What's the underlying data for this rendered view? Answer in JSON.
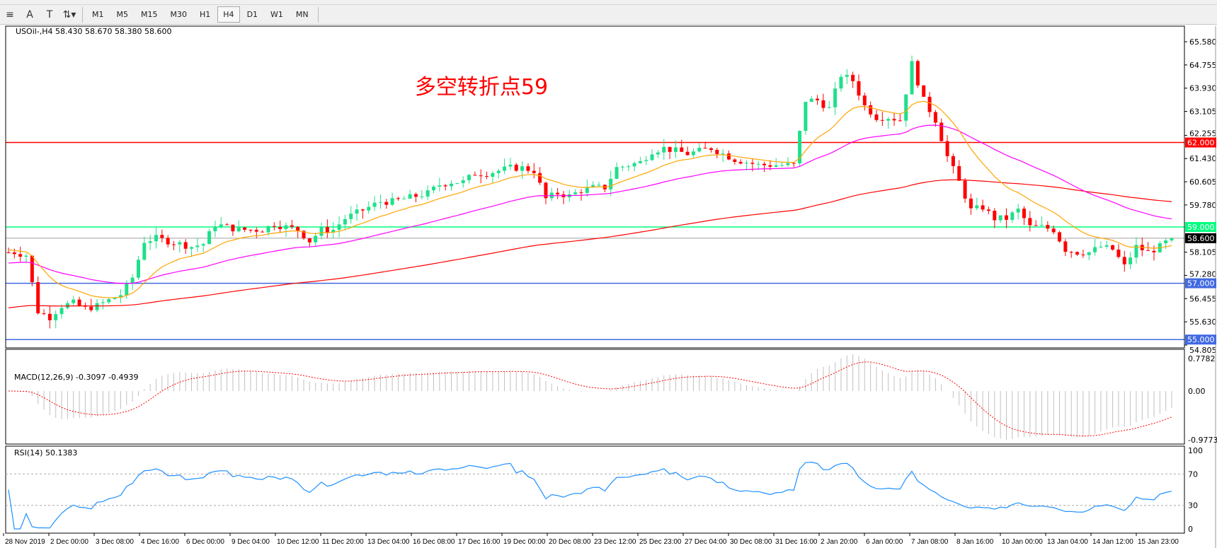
{
  "toolbar": {
    "icons": [
      "fibonacci-icon",
      "text-icon",
      "text-label-icon",
      "arrows-icon"
    ],
    "timeframes": [
      "M1",
      "M5",
      "M15",
      "M30",
      "H1",
      "H4",
      "D1",
      "W1",
      "MN"
    ],
    "active_timeframe": "H4"
  },
  "chart": {
    "header": "USOil-,H4  58.430 58.670 58.380 58.600",
    "annotation": "多空转折点59",
    "price_axis": [
      "65.580",
      "64.755",
      "63.930",
      "63.105",
      "62.255",
      "61.430",
      "60.605",
      "59.780",
      "58.105",
      "57.280",
      "56.455",
      "55.630",
      "54.805"
    ],
    "price_range": [
      54.805,
      65.58
    ],
    "levels": [
      {
        "price": 62.0,
        "label": "62.000",
        "color": "#ff0000"
      },
      {
        "price": 59.0,
        "label": "59.000",
        "color": "#00ff7f"
      },
      {
        "price": 58.6,
        "label": "58.600",
        "color": "#000000",
        "line": "#a0a0a0"
      },
      {
        "price": 57.0,
        "label": "57.000",
        "color": "#4169e1"
      },
      {
        "price": 55.0,
        "label": "55.000",
        "color": "#4169e1"
      }
    ],
    "colors": {
      "bull": "#1fe08a",
      "bear": "#ff0000",
      "ma_fast": "#ffa500",
      "ma_mid": "#ff00ff",
      "ma_slow": "#ff0000",
      "macd_hist": "#c0c0c0",
      "macd_signal": "#ff0000",
      "rsi": "#1e90ff"
    },
    "closes": [
      58.1,
      58.1,
      58.0,
      56.0,
      55.8,
      56.2,
      56.3,
      56.1,
      56.2,
      56.4,
      56.6,
      57.2,
      58.5,
      58.6,
      58.5,
      58.4,
      58.3,
      58.4,
      59.1,
      59.0,
      58.9,
      58.9,
      58.9,
      59.1,
      59.0,
      58.9,
      58.5,
      58.9,
      58.9,
      59.3,
      59.5,
      59.7,
      59.9,
      59.9,
      60.0,
      60.1,
      60.2,
      60.5,
      60.6,
      60.6,
      60.9,
      60.9,
      61.0,
      61.1,
      61.1,
      61.0,
      60.0,
      60.2,
      60.1,
      60.3,
      60.4,
      60.4,
      61.1,
      61.2,
      61.3,
      61.7,
      61.8,
      61.7,
      61.6,
      61.7,
      61.8,
      61.6,
      61.4,
      61.3,
      61.2,
      61.2,
      61.2,
      61.2,
      63.5,
      63.5,
      63.2,
      64.4,
      64.2,
      63.3,
      62.9,
      62.9,
      62.8,
      64.8,
      63.5,
      62.8,
      61.5,
      60.6,
      59.6,
      59.7,
      59.3,
      59.3,
      59.6,
      59.0,
      59.0,
      58.9,
      58.2,
      58.1,
      58.1,
      58.3,
      58.2,
      57.6,
      58.3,
      58.1,
      58.3,
      58.6
    ]
  },
  "macd": {
    "label": "MACD(12,26,9) -0.3097 -0.4939",
    "axis": [
      "0.7782",
      "0.00",
      "-0.9773"
    ]
  },
  "rsi": {
    "label": "RSI(14) 50.1383",
    "axis": [
      "100",
      "70",
      "30",
      "0"
    ],
    "levels": [
      70,
      30
    ]
  },
  "time_axis": [
    "28 Nov 2019",
    "2 Dec 00:00",
    "3 Dec 08:00",
    "4 Dec 16:00",
    "6 Dec 00:00",
    "9 Dec 04:00",
    "10 Dec 12:00",
    "11 Dec 20:00",
    "13 Dec 04:00",
    "16 Dec 08:00",
    "17 Dec 16:00",
    "19 Dec 00:00",
    "20 Dec 08:00",
    "23 Dec 12:00",
    "25 Dec 23:00",
    "27 Dec 04:00",
    "30 Dec 08:00",
    "31 Dec 16:00",
    "2 Jan 20:00",
    "6 Jan 00:00",
    "7 Jan 08:00",
    "8 Jan 16:00",
    "10 Jan 00:00",
    "13 Jan 04:00",
    "14 Jan 12:00",
    "15 Jan 23:00"
  ]
}
